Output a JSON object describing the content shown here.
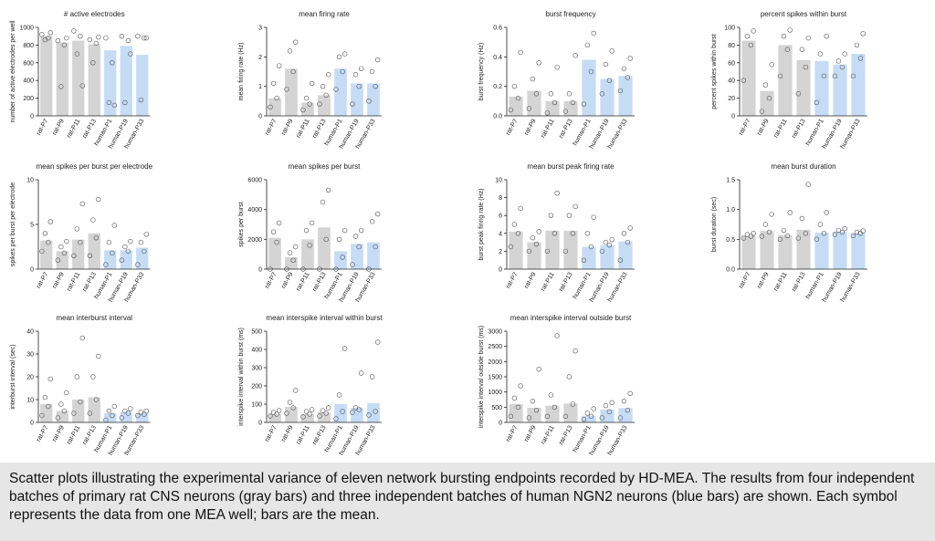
{
  "chart_data": [
    {
      "type": "bar",
      "title": "# active electrodes",
      "ylabel": "number of active electrodes per well",
      "categories": [
        "rat-P7",
        "rat-P9",
        "rat-P11",
        "rat-P13",
        "human-P1",
        "human-P19",
        "human-P33"
      ],
      "colors": [
        "#d4d4d4",
        "#d4d4d4",
        "#d4d4d4",
        "#d4d4d4",
        "#c6dcf5",
        "#c6dcf5",
        "#c6dcf5"
      ],
      "values": [
        900,
        830,
        850,
        810,
        740,
        790,
        690
      ],
      "points": [
        [
          920,
          880,
          860,
          940
        ],
        [
          850,
          800,
          330,
          880
        ],
        [
          960,
          900,
          700,
          340
        ],
        [
          860,
          820,
          600,
          890
        ],
        [
          880,
          600,
          150,
          120
        ],
        [
          900,
          850,
          150,
          700
        ],
        [
          900,
          880,
          180,
          880
        ]
      ],
      "ylim": [
        0,
        1000
      ],
      "yticks": [
        0,
        200,
        400,
        600,
        800,
        1000
      ]
    },
    {
      "type": "bar",
      "title": "mean firing rate",
      "ylabel": "mean firing rate (Hz)",
      "categories": [
        "rat-P7",
        "rat-P9",
        "rat-P11",
        "rat-P13",
        "human-P1",
        "human-P19",
        "human-P33"
      ],
      "colors": [
        "#d4d4d4",
        "#d4d4d4",
        "#d4d4d4",
        "#d4d4d4",
        "#c6dcf5",
        "#c6dcf5",
        "#c6dcf5"
      ],
      "values": [
        0.6,
        1.6,
        0.45,
        0.7,
        1.6,
        1.1,
        1.1
      ],
      "points": [
        [
          0.3,
          0.6,
          1.1,
          1.7
        ],
        [
          0.9,
          1.5,
          2.2,
          2.5
        ],
        [
          0.2,
          0.4,
          0.6,
          1.1
        ],
        [
          0.4,
          0.7,
          1.0,
          1.4
        ],
        [
          0.9,
          1.5,
          2.0,
          2.1
        ],
        [
          0.4,
          1.0,
          1.4,
          1.6
        ],
        [
          0.5,
          1.0,
          1.5,
          1.9
        ]
      ],
      "ylim": [
        0,
        3
      ],
      "yticks": [
        0,
        1,
        2,
        3
      ]
    },
    {
      "type": "bar",
      "title": "burst frequency",
      "ylabel": "burst frequency (Hz)",
      "categories": [
        "rat-P7",
        "rat-P9",
        "rat-P11",
        "rat-P13",
        "human-P1",
        "human-P19",
        "human-P33"
      ],
      "colors": [
        "#d4d4d4",
        "#d4d4d4",
        "#d4d4d4",
        "#d4d4d4",
        "#c6dcf5",
        "#c6dcf5",
        "#c6dcf5"
      ],
      "values": [
        0.13,
        0.17,
        0.1,
        0.1,
        0.38,
        0.25,
        0.27
      ],
      "points": [
        [
          0.04,
          0.12,
          0.2,
          0.43
        ],
        [
          0.05,
          0.15,
          0.25,
          0.36
        ],
        [
          0.02,
          0.09,
          0.15,
          0.33
        ],
        [
          0.03,
          0.09,
          0.15,
          0.41
        ],
        [
          0.08,
          0.3,
          0.48,
          0.56
        ],
        [
          0.15,
          0.24,
          0.35,
          0.44
        ],
        [
          0.17,
          0.26,
          0.32,
          0.39
        ]
      ],
      "ylim": [
        0,
        0.6
      ],
      "yticks": [
        {
          "value": 0,
          "label": "0.0"
        },
        0.2,
        0.4,
        0.6
      ]
    },
    {
      "type": "bar",
      "title": "percent spikes within burst",
      "ylabel": "percent spikes within burst",
      "categories": [
        "rat-P7",
        "rat-P9",
        "rat-P11",
        "rat-P13",
        "human-P1",
        "human-P19",
        "human-P33"
      ],
      "colors": [
        "#d4d4d4",
        "#d4d4d4",
        "#d4d4d4",
        "#d4d4d4",
        "#c6dcf5",
        "#c6dcf5",
        "#c6dcf5"
      ],
      "values": [
        85,
        28,
        80,
        63,
        62,
        58,
        70
      ],
      "points": [
        [
          40,
          80,
          90,
          96
        ],
        [
          5,
          20,
          35,
          58
        ],
        [
          45,
          75,
          90,
          97
        ],
        [
          25,
          55,
          75,
          88
        ],
        [
          15,
          45,
          70,
          90
        ],
        [
          45,
          55,
          62,
          70
        ],
        [
          45,
          65,
          80,
          93
        ]
      ],
      "ylim": [
        0,
        100
      ],
      "yticks": [
        0,
        20,
        40,
        60,
        80,
        100
      ]
    },
    {
      "type": "bar",
      "title": "mean spikes per burst per electrode",
      "ylabel": "spikes per burst per electrode",
      "categories": [
        "rat-P7",
        "rat-P9",
        "rat-P11",
        "rat-P13",
        "human-P1",
        "human-P19",
        "human-P33"
      ],
      "colors": [
        "#d4d4d4",
        "#d4d4d4",
        "#d4d4d4",
        "#d4d4d4",
        "#c6dcf5",
        "#c6dcf5",
        "#c6dcf5"
      ],
      "values": [
        3.2,
        2,
        3.3,
        4,
        2.1,
        2.1,
        2.4
      ],
      "points": [
        [
          2,
          3,
          4,
          5.3
        ],
        [
          1,
          1.8,
          2.5,
          3.1
        ],
        [
          1.5,
          3,
          4.5,
          7.3
        ],
        [
          1.5,
          3.5,
          5.5,
          7.8
        ],
        [
          0.5,
          1.8,
          3,
          4.9
        ],
        [
          1,
          2,
          2.5,
          3.1
        ],
        [
          0.5,
          2,
          3,
          3.9
        ]
      ],
      "ylim": [
        0,
        10
      ],
      "yticks": [
        0,
        5,
        10
      ]
    },
    {
      "type": "bar",
      "title": "mean spikes per burst",
      "ylabel": "spikes per burst",
      "categories": [
        "rat-P7",
        "rat-P9",
        "rat-P11",
        "rat-P13",
        "human-P1",
        "human-P19",
        "human-P33"
      ],
      "colors": [
        "#d4d4d4",
        "#d4d4d4",
        "#d4d4d4",
        "#d4d4d4",
        "#c6dcf5",
        "#c6dcf5",
        "#c6dcf5"
      ],
      "values": [
        2100,
        800,
        2000,
        2800,
        1200,
        1700,
        1800
      ],
      "points": [
        [
          0,
          1800,
          2500,
          3100
        ],
        [
          0,
          600,
          1100,
          1500
        ],
        [
          0,
          1600,
          2600,
          3100
        ],
        [
          0,
          2000,
          4500,
          5300
        ],
        [
          0,
          800,
          2000,
          2600
        ],
        [
          300,
          1500,
          2200,
          2600
        ],
        [
          0,
          1500,
          3200,
          3700
        ]
      ],
      "ylim": [
        0,
        6000
      ],
      "yticks": [
        0,
        2000,
        4000,
        6000
      ]
    },
    {
      "type": "bar",
      "title": "mean burst peak firing rate",
      "ylabel": "burst peak firing rate (Hz)",
      "categories": [
        "rat-P7",
        "rat-P9",
        "rat-P11",
        "rat-P13",
        "human-P1",
        "human-P19",
        "human-P33"
      ],
      "colors": [
        "#d4d4d4",
        "#d4d4d4",
        "#d4d4d4",
        "#d4d4d4",
        "#c6dcf5",
        "#c6dcf5",
        "#c6dcf5"
      ],
      "values": [
        4.2,
        3,
        4.3,
        4.3,
        2.5,
        2.7,
        3.1
      ],
      "points": [
        [
          2.5,
          4,
          5,
          6.8
        ],
        [
          2,
          2.8,
          3.5,
          4.2
        ],
        [
          2,
          4,
          6,
          8.5
        ],
        [
          2,
          4,
          6,
          7
        ],
        [
          1,
          2.5,
          4,
          5.8
        ],
        [
          2,
          2.7,
          3,
          3.3
        ],
        [
          1,
          3,
          4,
          4.6
        ]
      ],
      "ylim": [
        0,
        10
      ],
      "yticks": [
        0,
        2,
        4,
        6,
        8,
        10
      ]
    },
    {
      "type": "bar",
      "title": "mean burst duration",
      "ylabel": "burst duration (sec)",
      "categories": [
        "rat-P7",
        "rat-P9",
        "rat-P11",
        "rat-P13",
        "human-P1",
        "human-P19",
        "human-P33"
      ],
      "colors": [
        "#d4d4d4",
        "#d4d4d4",
        "#d4d4d4",
        "#d4d4d4",
        "#c6dcf5",
        "#c6dcf5",
        "#c6dcf5"
      ],
      "values": [
        0.56,
        0.64,
        0.57,
        0.66,
        0.61,
        0.63,
        0.6
      ],
      "points": [
        [
          0.52,
          0.55,
          0.58,
          0.6
        ],
        [
          0.55,
          0.62,
          0.75,
          0.92
        ],
        [
          0.5,
          0.56,
          0.65,
          0.95
        ],
        [
          0.52,
          0.6,
          0.85,
          1.42
        ],
        [
          0.5,
          0.6,
          0.75,
          0.95
        ],
        [
          0.58,
          0.62,
          0.65,
          0.68
        ],
        [
          0.56,
          0.6,
          0.62,
          0.64
        ]
      ],
      "ylim": [
        0,
        1.5
      ],
      "yticks": [
        {
          "value": 0,
          "label": "0.0"
        },
        0.5,
        {
          "value": 1,
          "label": "1.0"
        },
        1.5
      ]
    },
    {
      "type": "bar",
      "title": "mean interburst interval",
      "ylabel": "interburst interval (sec)",
      "categories": [
        "rat-P7",
        "rat-P9",
        "rat-P11",
        "rat-P13",
        "human-P1",
        "human-P19",
        "human-P33"
      ],
      "colors": [
        "#d4d4d4",
        "#d4d4d4",
        "#d4d4d4",
        "#d4d4d4",
        "#c6dcf5",
        "#c6dcf5",
        "#c6dcf5"
      ],
      "values": [
        8,
        5,
        10,
        11,
        4,
        4.5,
        4
      ],
      "points": [
        [
          3,
          7,
          11,
          19
        ],
        [
          2,
          5,
          8,
          13
        ],
        [
          4,
          9,
          20,
          37
        ],
        [
          4,
          10,
          20,
          29
        ],
        [
          1,
          3,
          5,
          7
        ],
        [
          2,
          4,
          5,
          6
        ],
        [
          3,
          3.5,
          4.5,
          5
        ]
      ],
      "ylim": [
        0,
        40
      ],
      "yticks": [
        0,
        10,
        20,
        30,
        40
      ]
    },
    {
      "type": "bar",
      "title": "mean interspike interval within burst",
      "ylabel": "interspike interval within burst (ms)",
      "categories": [
        "rat-P7",
        "rat-P9",
        "rat-P11",
        "rat-P13",
        "human-P1",
        "human-P19",
        "human-P33"
      ],
      "colors": [
        "#d4d4d4",
        "#d4d4d4",
        "#d4d4d4",
        "#d4d4d4",
        "#c6dcf5",
        "#c6dcf5",
        "#c6dcf5"
      ],
      "values": [
        45,
        85,
        45,
        55,
        100,
        80,
        105
      ],
      "points": [
        [
          35,
          45,
          55,
          65
        ],
        [
          50,
          80,
          110,
          175
        ],
        [
          30,
          45,
          60,
          70
        ],
        [
          35,
          50,
          65,
          80
        ],
        [
          20,
          60,
          150,
          405
        ],
        [
          55,
          70,
          80,
          270
        ],
        [
          40,
          60,
          250,
          440
        ]
      ],
      "ylim": [
        0,
        500
      ],
      "yticks": [
        0,
        100,
        200,
        300,
        400,
        500
      ]
    },
    {
      "type": "bar",
      "title": "mean interspike interval outside burst",
      "ylabel": "interspike interval outside burst (ms)",
      "categories": [
        "rat-P7",
        "rat-P9",
        "rat-P11",
        "rat-P13",
        "human-P1",
        "human-P19",
        "human-P33"
      ],
      "colors": [
        "#d4d4d4",
        "#d4d4d4",
        "#d4d4d4",
        "#d4d4d4",
        "#c6dcf5",
        "#c6dcf5",
        "#c6dcf5"
      ],
      "values": [
        600,
        480,
        550,
        620,
        220,
        420,
        470
      ],
      "points": [
        [
          200,
          500,
          800,
          1200
        ],
        [
          150,
          400,
          700,
          1750
        ],
        [
          200,
          500,
          900,
          2850
        ],
        [
          200,
          600,
          1500,
          2350
        ],
        [
          100,
          200,
          300,
          450
        ],
        [
          150,
          350,
          550,
          650
        ],
        [
          150,
          400,
          700,
          950
        ]
      ],
      "ylim": [
        0,
        3000
      ],
      "yticks": [
        0,
        500,
        1000,
        1500,
        2000,
        2500,
        3000
      ]
    }
  ],
  "caption": "Scatter plots illustrating the experimental variance of eleven network bursting endpoints recorded by HD-MEA.  The results from four independent batches of primary rat CNS neurons (gray bars) and three independent batches of human NGN2 neurons (blue bars) are shown. Each symbol represents the data from one MEA well; bars are the mean."
}
